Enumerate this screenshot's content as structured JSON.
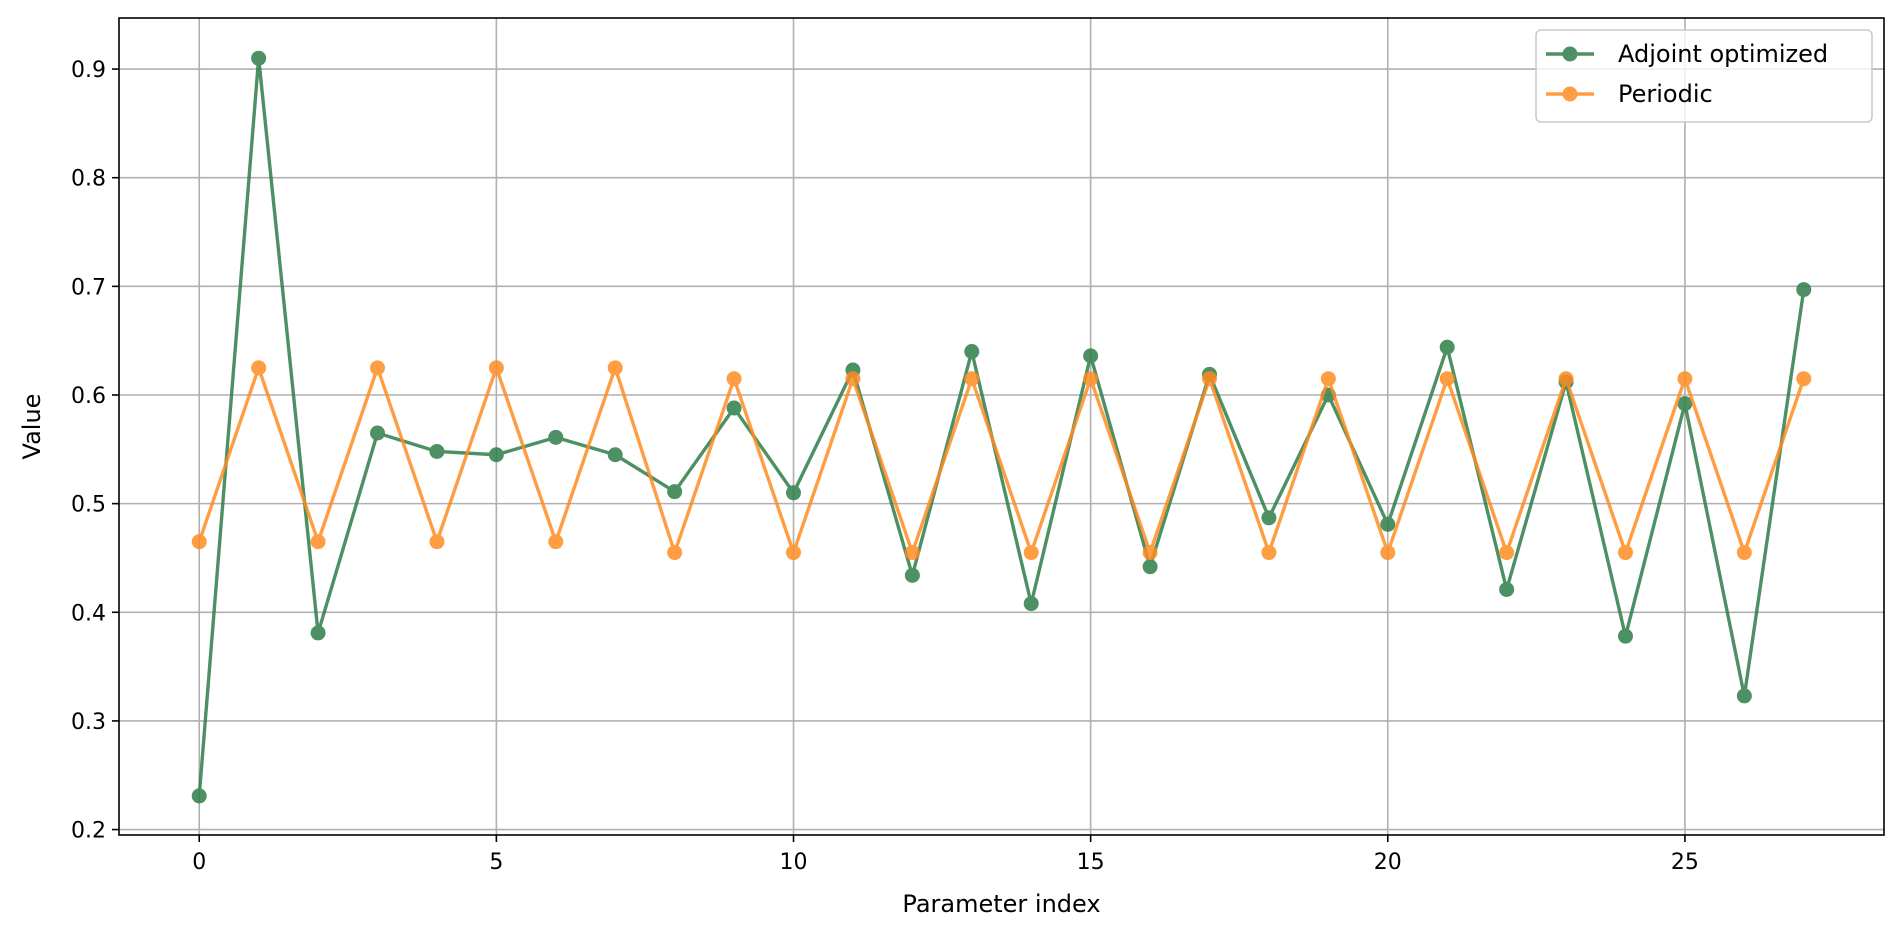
{
  "chart_data": {
    "type": "line",
    "title": "",
    "xlabel": "Parameter index",
    "ylabel": "Value",
    "xlim": [
      -1.35,
      28.35
    ],
    "ylim": [
      0.195,
      0.947
    ],
    "xticks": [
      0,
      5,
      10,
      15,
      20,
      25
    ],
    "xtick_labels": [
      "0",
      "5",
      "10",
      "15",
      "20",
      "25"
    ],
    "yticks": [
      0.2,
      0.3,
      0.4,
      0.5,
      0.6,
      0.7,
      0.8,
      0.9
    ],
    "ytick_labels": [
      "0.2",
      "0.3",
      "0.4",
      "0.5",
      "0.6",
      "0.7",
      "0.8",
      "0.9"
    ],
    "grid": true,
    "legend_position": "top-right",
    "x": [
      0,
      1,
      2,
      3,
      4,
      5,
      6,
      7,
      8,
      9,
      10,
      11,
      12,
      13,
      14,
      15,
      16,
      17,
      18,
      19,
      20,
      21,
      22,
      23,
      24,
      25,
      26,
      27
    ],
    "series": [
      {
        "name": "Adjoint optimized",
        "color": "#2e7d4a",
        "marker": "circle",
        "values": [
          0.231,
          0.91,
          0.381,
          0.565,
          0.548,
          0.545,
          0.561,
          0.545,
          0.511,
          0.588,
          0.51,
          0.623,
          0.434,
          0.64,
          0.408,
          0.636,
          0.442,
          0.619,
          0.487,
          0.6,
          0.481,
          0.644,
          0.421,
          0.612,
          0.378,
          0.592,
          0.323,
          0.697
        ]
      },
      {
        "name": "Periodic",
        "color": "#ff8c22",
        "marker": "circle",
        "values": [
          0.465,
          0.625,
          0.465,
          0.625,
          0.465,
          0.625,
          0.465,
          0.625,
          0.455,
          0.615,
          0.455,
          0.615,
          0.455,
          0.615,
          0.455,
          0.615,
          0.455,
          0.615,
          0.455,
          0.615,
          0.455,
          0.615,
          0.455,
          0.615,
          0.455,
          0.615,
          0.455,
          0.615
        ]
      }
    ]
  }
}
